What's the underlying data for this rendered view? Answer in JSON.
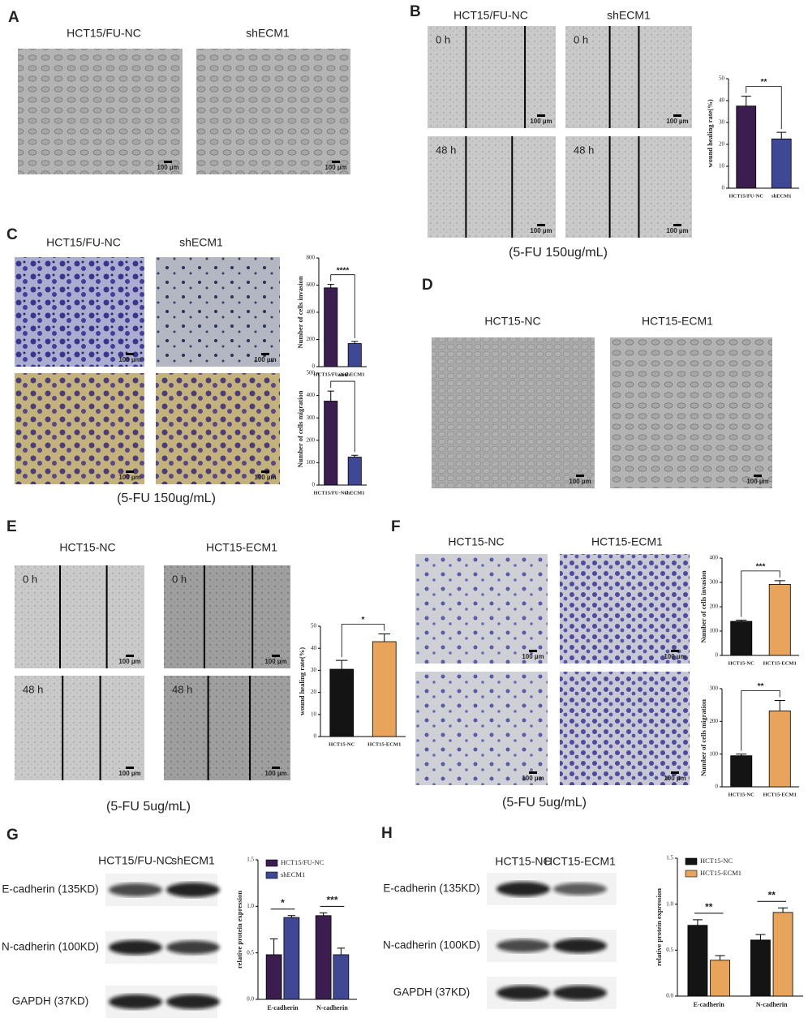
{
  "panels": {
    "A": {
      "label": "A",
      "titles": [
        "HCT15/FU-NC",
        "shECM1"
      ],
      "scale_bars": [
        "100 µm",
        "100 µm"
      ]
    },
    "B": {
      "label": "B",
      "titles": [
        "HCT15/FU-NC",
        "shECM1"
      ],
      "time_labels": [
        "0 h",
        "0 h",
        "48 h",
        "48 h"
      ],
      "scale_bars": [
        "100 µm",
        "100 µm",
        "100 µm",
        "100 µm"
      ],
      "caption": "(5-FU 150ug/mL)"
    },
    "C": {
      "label": "C",
      "titles": [
        "HCT15/FU-NC",
        "shECM1"
      ],
      "scale_bars": [
        "100 µm",
        "100 µm",
        "100 µm",
        "100 µm"
      ],
      "caption": "(5-FU 150ug/mL)"
    },
    "D": {
      "label": "D",
      "titles": [
        "HCT15-NC",
        "HCT15-ECM1"
      ],
      "scale_bars": [
        "100 µm",
        "100 µm"
      ]
    },
    "E": {
      "label": "E",
      "titles": [
        "HCT15-NC",
        "HCT15-ECM1"
      ],
      "time_labels": [
        "0 h",
        "0 h",
        "48 h",
        "48 h"
      ],
      "scale_bars": [
        "100 µm",
        "100 µm",
        "100 µm",
        "100 µm"
      ],
      "caption": "(5-FU 5ug/mL)"
    },
    "F": {
      "label": "F",
      "titles": [
        "HCT15-NC",
        "HCT15-ECM1"
      ],
      "scale_bars": [
        "100 µm",
        "100 µm",
        "100 µm",
        "100 µm"
      ],
      "caption": "(5-FU 5ug/mL)"
    },
    "G": {
      "label": "G",
      "titles": [
        "HCT15/FU-NC",
        "shECM1"
      ],
      "blot_labels": [
        "E-cadherin (135KD)",
        "N-cadherin (100KD)",
        "GAPDH (37KD)"
      ]
    },
    "H": {
      "label": "H",
      "titles": [
        "HCT15-NC",
        "HCT15-ECM1"
      ],
      "blot_labels": [
        "E-cadherin (135KD)",
        "N-cadherin (100KD)",
        "GAPDH (37KD)"
      ]
    }
  },
  "chart_data": [
    {
      "type": "bar",
      "ylabel": "wound healing rate(%)",
      "categories": [
        "HCT15/FU-NC",
        "shECM1"
      ],
      "values": [
        37.5,
        22.5
      ],
      "errors": [
        4.5,
        3
      ],
      "colors": [
        "#3b1e4f",
        "#3e4895"
      ],
      "ylim": [
        0,
        50
      ],
      "yticks": [
        0,
        10,
        20,
        30,
        40,
        50
      ],
      "significance": "**"
    },
    {
      "type": "bar",
      "ylabel": "Number of cells invasion",
      "categories": [
        "HCT15/FU-NC",
        "shECM1"
      ],
      "values": [
        580,
        170
      ],
      "errors": [
        25,
        15
      ],
      "colors": [
        "#3b1e4f",
        "#3e4895"
      ],
      "ylim": [
        0,
        800
      ],
      "yticks": [
        0,
        200,
        400,
        600,
        800
      ],
      "significance": "****"
    },
    {
      "type": "bar",
      "ylabel": "Number of cells migration",
      "categories": [
        "HCT15/FU-NC",
        "shECM1"
      ],
      "values": [
        375,
        125
      ],
      "errors": [
        45,
        8
      ],
      "colors": [
        "#3b1e4f",
        "#3e4895"
      ],
      "ylim": [
        0,
        500
      ],
      "yticks": [
        0,
        100,
        200,
        300,
        400,
        500
      ],
      "significance": "***"
    },
    {
      "type": "bar",
      "ylabel": "wound healing rate(%)",
      "categories": [
        "HCT15-NC",
        "HCT15-ECM1"
      ],
      "values": [
        30.5,
        43
      ],
      "errors": [
        4,
        3.5
      ],
      "colors": [
        "#141414",
        "#e8a45a"
      ],
      "ylim": [
        0,
        50
      ],
      "yticks": [
        0,
        10,
        20,
        30,
        40,
        50
      ],
      "significance": "*"
    },
    {
      "type": "bar",
      "ylabel": "Number of cells invasion",
      "categories": [
        "HCT15-NC",
        "HCT15-ECM1"
      ],
      "values": [
        140,
        292
      ],
      "errors": [
        5,
        15
      ],
      "colors": [
        "#141414",
        "#e8a45a"
      ],
      "ylim": [
        0,
        400
      ],
      "yticks": [
        0,
        100,
        200,
        300,
        400
      ],
      "significance": "***"
    },
    {
      "type": "bar",
      "ylabel": "Number of cells migration",
      "categories": [
        "HCT15-NC",
        "HCT15-ECM1"
      ],
      "values": [
        95,
        232
      ],
      "errors": [
        5,
        32
      ],
      "colors": [
        "#141414",
        "#e8a45a"
      ],
      "ylim": [
        0,
        300
      ],
      "yticks": [
        0,
        100,
        200,
        300
      ],
      "significance": "**"
    },
    {
      "type": "grouped_bar",
      "ylabel": "relative protein expression",
      "categories": [
        "E-cadherin",
        "N-cadherin"
      ],
      "series": [
        {
          "name": "HCT15/FU-NC",
          "color": "#3b1e4f",
          "values": [
            0.48,
            0.9
          ],
          "errors": [
            0.17,
            0.03
          ]
        },
        {
          "name": "shECM1",
          "color": "#3e4895",
          "values": [
            0.88,
            0.48
          ],
          "errors": [
            0.02,
            0.07
          ]
        }
      ],
      "ylim": [
        0,
        1.5
      ],
      "yticks": [
        {
          "value": 0,
          "label": "0.0"
        },
        {
          "value": 0.5,
          "label": "0.5"
        },
        {
          "value": 1,
          "label": "1.0"
        },
        {
          "value": 1.5,
          "label": "1.5"
        }
      ],
      "significance": [
        "*",
        "***"
      ]
    },
    {
      "type": "grouped_bar",
      "ylabel": "relative protein expression",
      "categories": [
        "E-cadherin",
        "N-cadherin"
      ],
      "series": [
        {
          "name": "HCT15-NC",
          "color": "#141414",
          "values": [
            0.77,
            0.61
          ],
          "errors": [
            0.06,
            0.06
          ]
        },
        {
          "name": "HCT15-ECM1",
          "color": "#e8a45a",
          "values": [
            0.39,
            0.91
          ],
          "errors": [
            0.05,
            0.05
          ]
        }
      ],
      "ylim": [
        0,
        1.5
      ],
      "yticks": [
        {
          "value": 0,
          "label": "0.0"
        },
        {
          "value": 0.5,
          "label": "0.5"
        },
        {
          "value": 1,
          "label": "1.0"
        },
        {
          "value": 1.5,
          "label": "1.5"
        }
      ],
      "significance": [
        "**",
        "**"
      ]
    }
  ]
}
